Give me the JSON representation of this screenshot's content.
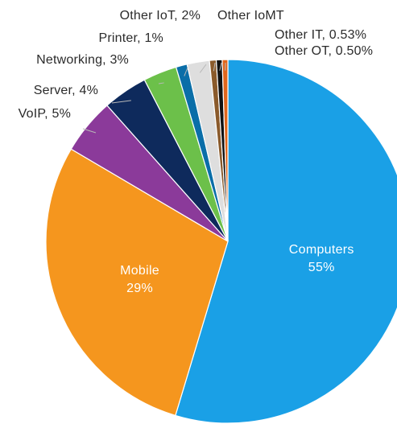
{
  "chart_data": {
    "type": "pie",
    "title": "",
    "start_angle_deg": 0,
    "direction": "clockwise",
    "slices": [
      {
        "label": "Computers",
        "display": "Computers",
        "value_text": "55%",
        "value": 55,
        "color": "#1aa0e6",
        "label_style": "inside"
      },
      {
        "label": "Mobile",
        "display": "Mobile",
        "value_text": "29%",
        "value": 29,
        "color": "#f5961e",
        "label_style": "inside"
      },
      {
        "label": "VoIP",
        "display": "VoIP, 5%",
        "value_text": "5%",
        "value": 5,
        "color": "#8b3a9a",
        "label_style": "outside"
      },
      {
        "label": "Server",
        "display": "Server, 4%",
        "value_text": "4%",
        "value": 4,
        "color": "#0e2a5c",
        "label_style": "outside"
      },
      {
        "label": "Networking",
        "display": "Networking, 3%",
        "value_text": "3%",
        "value": 3,
        "color": "#6cc04a",
        "label_style": "outside"
      },
      {
        "label": "Printer",
        "display": "Printer, 1%",
        "value_text": "1%",
        "value": 1,
        "color": "#0a6ea8",
        "label_style": "outside"
      },
      {
        "label": "Other IoT",
        "display": "Other IoT, 2%",
        "value_text": "2%",
        "value": 2,
        "color": "#dedede",
        "label_style": "outside"
      },
      {
        "label": "Other IoMT",
        "display": "Other IoMT",
        "value_text": "",
        "value": 0.6,
        "color": "#8a5a2b",
        "label_style": "outside"
      },
      {
        "label": "Other IT",
        "display": "Other IT, 0.53%",
        "value_text": "0.53%",
        "value": 0.53,
        "color": "#111111",
        "label_style": "outside"
      },
      {
        "label": "Other OT",
        "display": "Other OT, 0.50%",
        "value_text": "0.50%",
        "value": 0.5,
        "color": "#e0661c",
        "label_style": "outside"
      }
    ]
  }
}
